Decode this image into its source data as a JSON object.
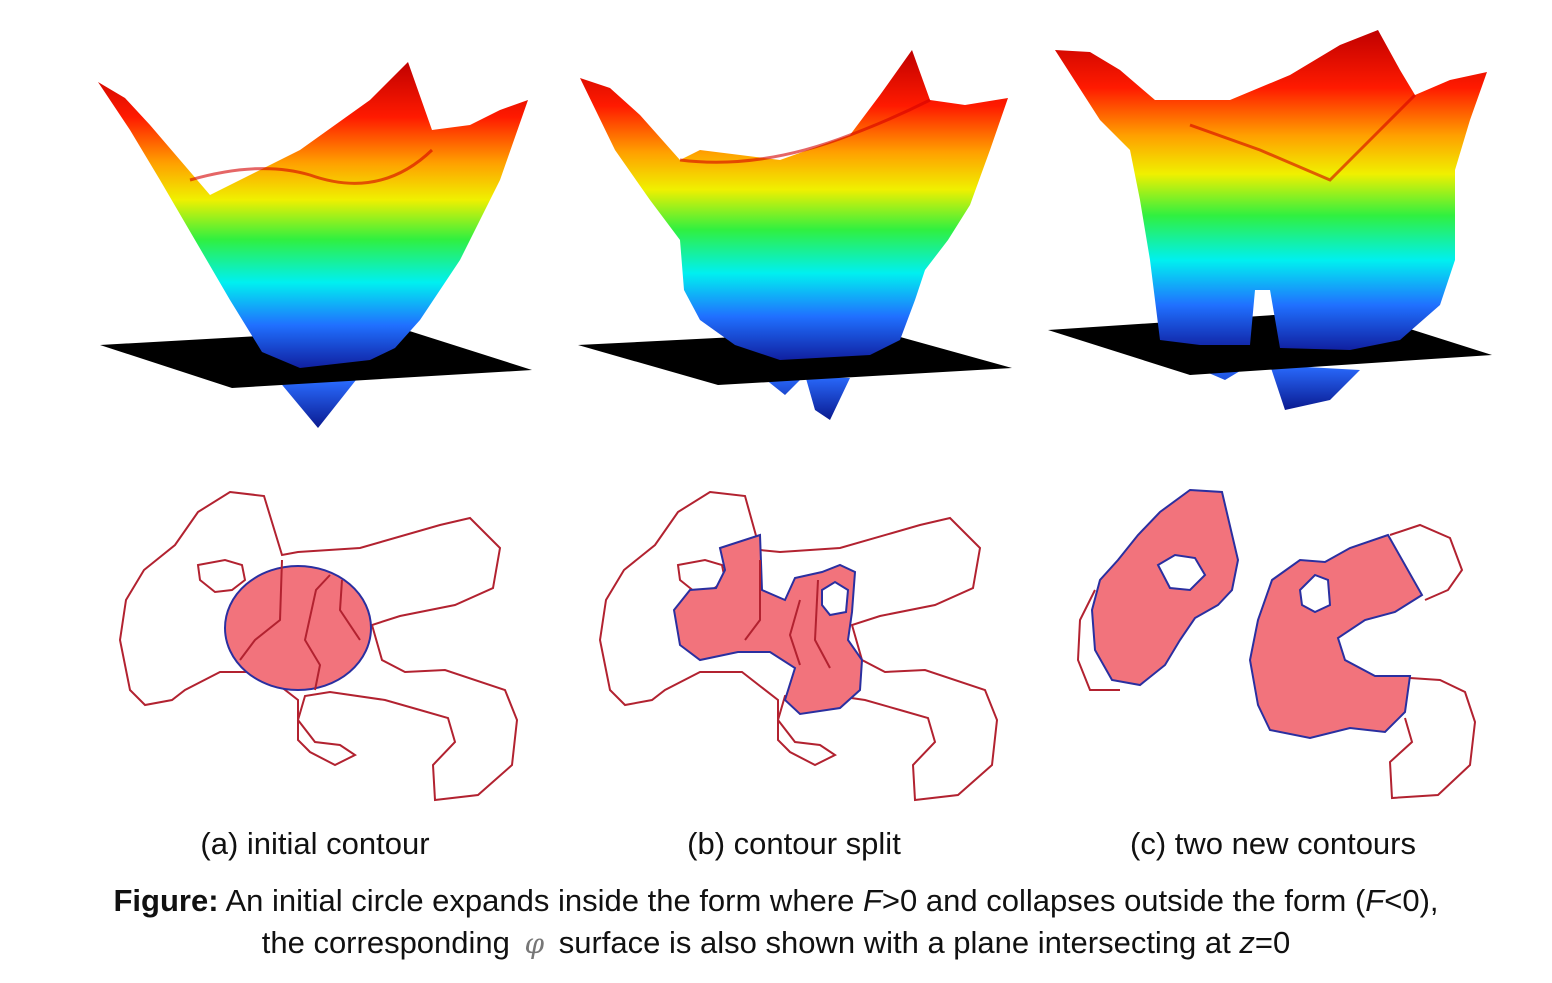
{
  "panels": [
    {
      "id": "a",
      "label": "(a) initial contour"
    },
    {
      "id": "b",
      "label": "(b) contour split"
    },
    {
      "id": "c",
      "label": "(c) two new contours"
    }
  ],
  "caption": {
    "lead": "Figure:",
    "t1": " An initial circle expands inside the form where ",
    "f1": "F",
    "t2": ">0 and collapses outside the form (",
    "f2": "F",
    "t3": "<0),",
    "t4": "the corresponding ",
    "phi": "φ",
    "t5": " surface is also shown with a plane intersecting at ",
    "z": "z",
    "t6": "=0"
  },
  "colors": {
    "contour_outline": "#b22230",
    "fill": "#f2737c",
    "fill_edge": "#2a2fa0",
    "plane": "#000000"
  }
}
